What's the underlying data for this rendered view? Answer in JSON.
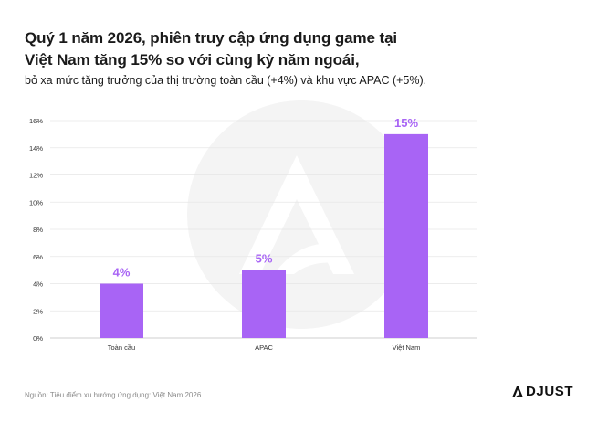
{
  "title_lines": [
    "Quý 1 năm 2026, phiên truy cập ứng dụng game tại",
    "Việt Nam tăng 15% so với cùng kỳ năm ngoái,"
  ],
  "subtitle": "bỏ xa mức tăng trưởng của thị trường toàn cầu (+4%) và khu vực APAC (+5%).",
  "source": "Nguồn: Tiêu điểm xu hướng ứng dụng: Việt Nam 2026",
  "brand": {
    "name": "DJUST",
    "mark": "adjust-logo-a",
    "accent": "#9b5cf0"
  },
  "colors": {
    "bar": "#a864f5",
    "label": "#a864f5",
    "grid": "#e6e6e6",
    "watermark": "#f3f3f3"
  },
  "chart_data": {
    "type": "bar",
    "categories": [
      "Toàn cầu",
      "APAC",
      "Việt Nam"
    ],
    "values": [
      4,
      5,
      15
    ],
    "data_labels": [
      "4%",
      "5%",
      "15%"
    ],
    "ylim": [
      0,
      16
    ],
    "yticks": [
      0,
      2,
      4,
      6,
      8,
      10,
      12,
      14,
      16
    ],
    "ytick_labels": [
      "0%",
      "2%",
      "4%",
      "6%",
      "8%",
      "10%",
      "12%",
      "14%",
      "16%"
    ],
    "grid": true,
    "xlabel": "",
    "ylabel": ""
  }
}
